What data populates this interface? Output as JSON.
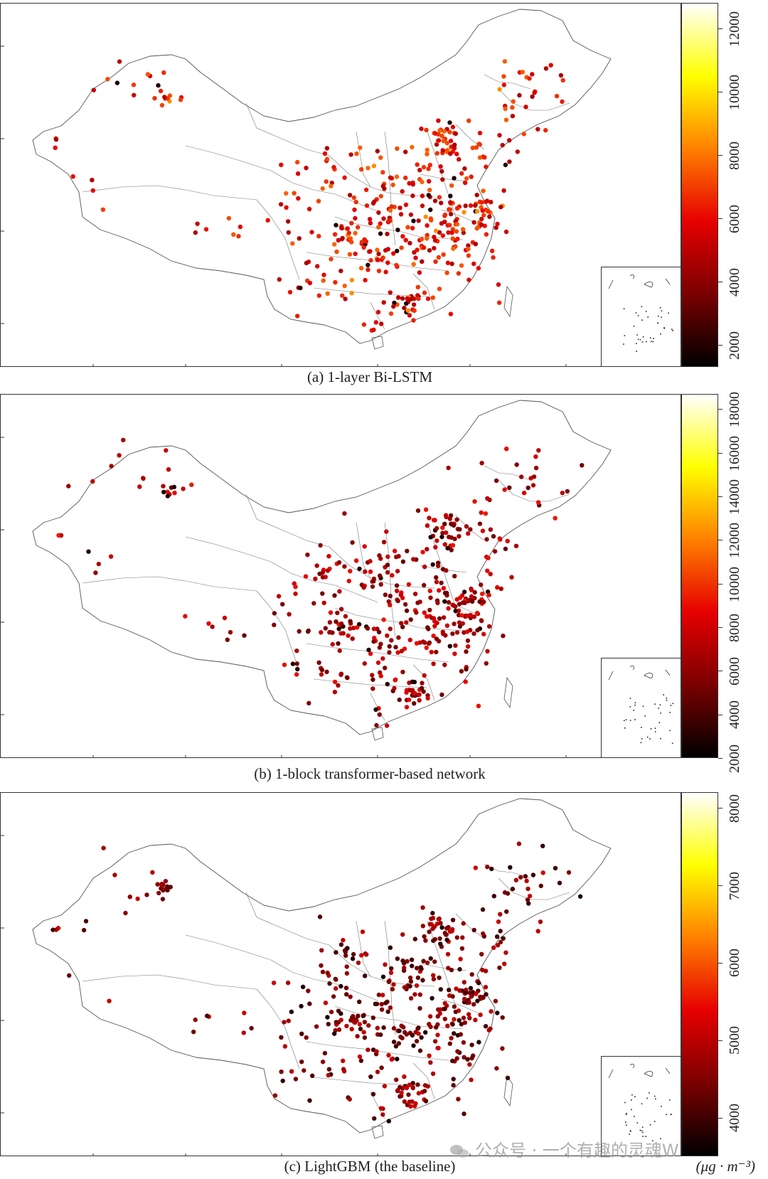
{
  "panels": [
    {
      "id": "a",
      "caption": "(a) 1-layer Bi-LSTM",
      "colorbar": {
        "min": 1300,
        "max": 12800,
        "ticks": [
          "2000",
          "4000",
          "6000",
          "8000",
          "10000",
          "12000"
        ],
        "tick_values": [
          2000,
          4000,
          6000,
          8000,
          10000,
          12000
        ]
      }
    },
    {
      "id": "b",
      "caption": "(b) 1-block transformer-based network",
      "colorbar": {
        "min": 2000,
        "max": 18700,
        "ticks": [
          "2000",
          "4000",
          "6000",
          "8000",
          "10000",
          "12000",
          "14000",
          "16000",
          "18000"
        ],
        "tick_values": [
          2000,
          4000,
          6000,
          8000,
          10000,
          12000,
          14000,
          16000,
          18000
        ]
      }
    },
    {
      "id": "c",
      "caption": "(c) LightGBM (the baseline)",
      "colorbar": {
        "min": 3500,
        "max": 8200,
        "ticks": [
          "4000",
          "5000",
          "6000",
          "7000",
          "8000"
        ],
        "tick_values": [
          4000,
          5000,
          6000,
          7000,
          8000
        ]
      }
    }
  ],
  "unit_label": "(μg · m⁻³)",
  "colormap": {
    "name": "hot",
    "stops": [
      "#000000",
      "#7a0000",
      "#e60000",
      "#ff8000",
      "#ffff00",
      "#ffffff"
    ]
  },
  "watermark": "公众号 · 一个有趣的灵魂W"
}
